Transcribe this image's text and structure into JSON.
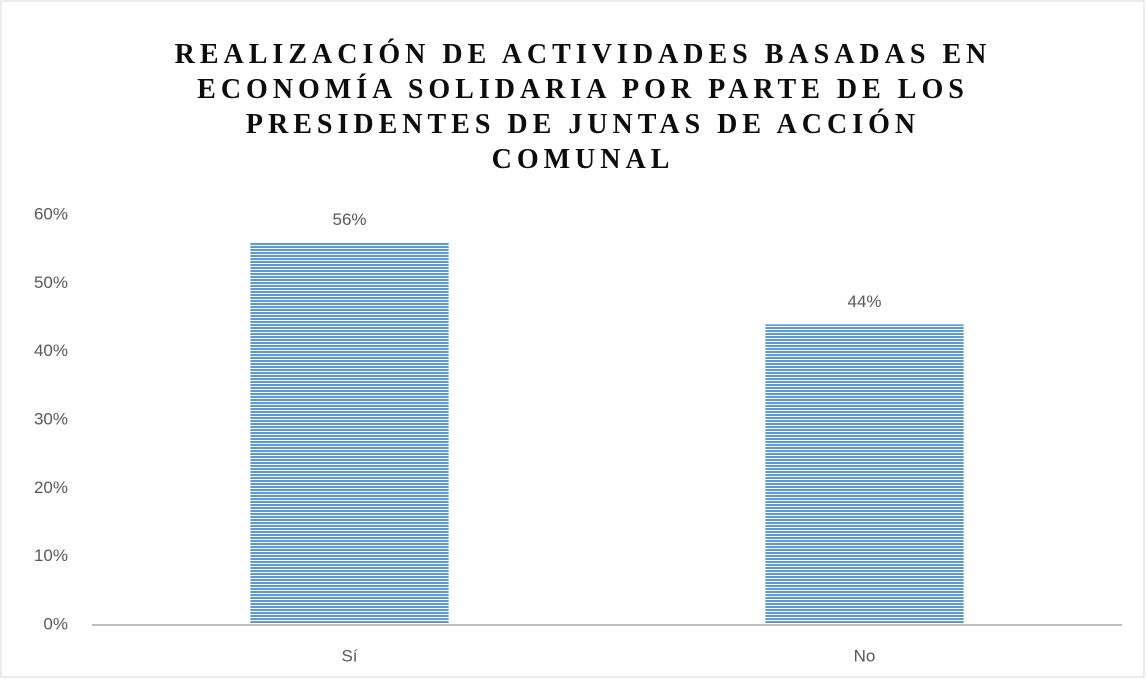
{
  "chart_data": {
    "type": "bar",
    "title": "REALIZACIÓN DE ACTIVIDADES BASADAS EN ECONOMÍA SOLIDARIA POR PARTE DE LOS PRESIDENTES DE JUNTAS DE ACCIÓN COMUNAL",
    "categories": [
      "Sí",
      "No"
    ],
    "values": [
      56,
      44
    ],
    "value_labels": [
      "56%",
      "44%"
    ],
    "color": "#5b9bd5",
    "ylim": [
      0,
      60
    ],
    "yticks": [
      {
        "value": 0,
        "label": "0%"
      },
      {
        "value": 10,
        "label": "10%"
      },
      {
        "value": 20,
        "label": "20%"
      },
      {
        "value": 30,
        "label": "30%"
      },
      {
        "value": 40,
        "label": "40%"
      },
      {
        "value": 50,
        "label": "50%"
      },
      {
        "value": 60,
        "label": "60%"
      }
    ],
    "grid": false
  }
}
